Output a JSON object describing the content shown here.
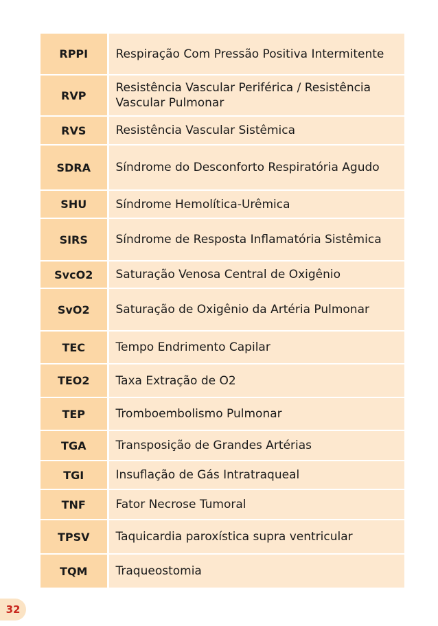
{
  "page_number": "32",
  "rows": [
    {
      "abbr": "RPPI",
      "definition": "Respiração Com Pressão Positiva Intermitente"
    },
    {
      "abbr": "RVP",
      "definition": "Resistência Vascular Periférica / Resistência Vascular Pulmonar"
    },
    {
      "abbr": "RVS",
      "definition": "Resistência Vascular Sistêmica"
    },
    {
      "abbr": "SDRA",
      "definition": "Síndrome do Desconforto Respiratória Agudo"
    },
    {
      "abbr": "SHU",
      "definition": "Síndrome Hemolítica-Urêmica"
    },
    {
      "abbr": "SIRS",
      "definition": "Síndrome de Resposta Inflamatória Sistêmica"
    },
    {
      "abbr": "SvcO2",
      "definition": "Saturação Venosa Central de Oxigênio"
    },
    {
      "abbr": "SvO2",
      "definition": "Saturação de Oxigênio da Artéria Pulmonar"
    },
    {
      "abbr": "TEC",
      "definition": "Tempo Endrimento Capilar"
    },
    {
      "abbr": "TEO2",
      "definition": "Taxa Extração de O2"
    },
    {
      "abbr": "TEP",
      "definition": "Tromboembolismo Pulmonar"
    },
    {
      "abbr": "TGA",
      "definition": "Transposição de Grandes Artérias"
    },
    {
      "abbr": "TGI",
      "definition": "Insuflação de Gás Intratraqueal"
    },
    {
      "abbr": "TNF",
      "definition": "Fator Necrose Tumoral"
    },
    {
      "abbr": "TPSV",
      "definition": "Taquicardia paroxística supra ventricular"
    },
    {
      "abbr": "TQM",
      "definition": "Traqueostomia"
    }
  ]
}
